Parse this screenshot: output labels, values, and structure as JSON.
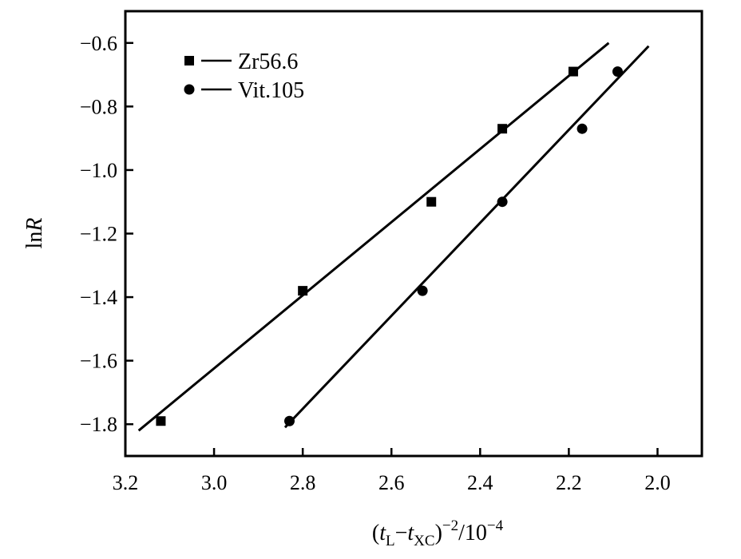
{
  "chart_data": {
    "type": "scatter",
    "title": "",
    "xlabel": {
      "open": "(",
      "t": "t",
      "sub_L": "L",
      "minus": "−",
      "t2": "t",
      "sub_XC": "XC",
      "close": ")",
      "sup_exp": "−2",
      "divider": "/10",
      "sup_scale": "−4"
    },
    "ylabel": {
      "prefix": "ln",
      "italic": "R"
    },
    "x_reversed": true,
    "xlim": [
      3.2,
      1.9
    ],
    "ylim": [
      -1.9,
      -0.5
    ],
    "x_ticks": [
      3.2,
      3.0,
      2.8,
      2.6,
      2.4,
      2.2,
      2.0
    ],
    "x_tick_labels": [
      "3.2",
      "3.0",
      "2.8",
      "2.6",
      "2.4",
      "2.2",
      "2.0"
    ],
    "y_ticks": [
      -0.6,
      -0.8,
      -1.0,
      -1.2,
      -1.4,
      -1.6,
      -1.8
    ],
    "y_tick_labels": [
      "−0.6",
      "−0.8",
      "−1.0",
      "−1.2",
      "−1.4",
      "−1.6",
      "−1.8"
    ],
    "grid": false,
    "legend_position": "top-left",
    "series": [
      {
        "name": "Zr56.6",
        "marker": "square",
        "x": [
          3.12,
          2.8,
          2.51,
          2.35,
          2.19
        ],
        "y": [
          -1.79,
          -1.38,
          -1.1,
          -0.87,
          -0.69
        ],
        "fit_line": {
          "x": [
            3.17,
            2.11
          ],
          "y": [
            -1.82,
            -0.6
          ]
        }
      },
      {
        "name": "Vit.105",
        "marker": "circle",
        "x": [
          2.83,
          2.53,
          2.35,
          2.17,
          2.09
        ],
        "y": [
          -1.79,
          -1.38,
          -1.1,
          -0.87,
          -0.69
        ],
        "fit_line": {
          "x": [
            2.84,
            2.02
          ],
          "y": [
            -1.81,
            -0.61
          ]
        }
      }
    ]
  }
}
